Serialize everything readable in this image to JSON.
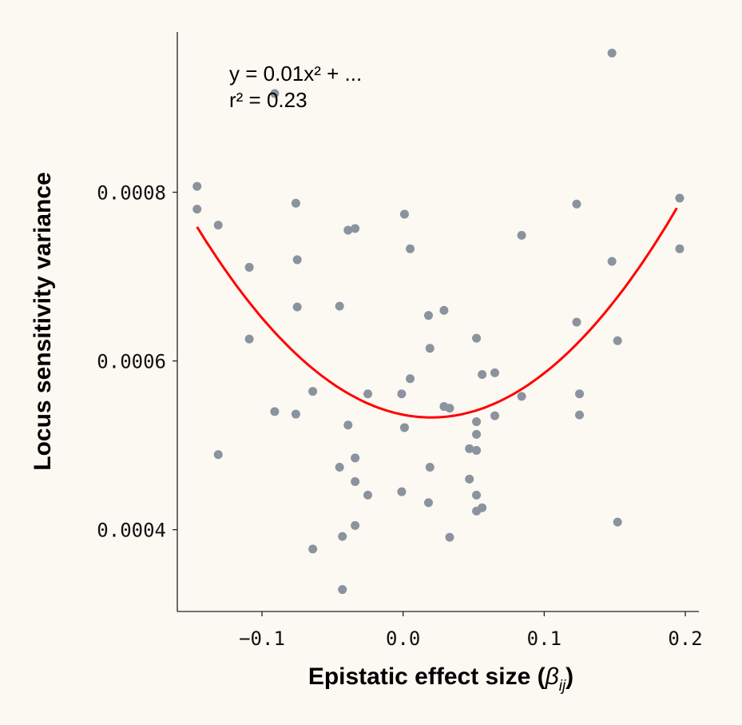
{
  "chart_data": {
    "type": "scatter",
    "title": "",
    "xlabel": "Epistatic effect size (",
    "xlabel_symbol": "β",
    "xlabel_subscript": "ij",
    "xlabel_close": ")",
    "ylabel": "Locus sensitivity variance",
    "xlim": [
      -0.16,
      0.2096
    ],
    "ylim": [
      0.000303,
      0.00099
    ],
    "xticks": [
      -0.1,
      0.0,
      0.1,
      0.2
    ],
    "xtick_labels": [
      "−0.1",
      "0.0",
      "0.1",
      "0.2"
    ],
    "yticks": [
      0.0004,
      0.0006,
      0.0008
    ],
    "ytick_labels": [
      "0.0004",
      "0.0006",
      "0.0008"
    ],
    "grid": false,
    "annotation": [
      "y = 0.01x² + ...",
      "r² = 0.23"
    ],
    "point_color": "#8a939e",
    "fit_color": "#ff0000",
    "points": [
      [
        -0.146,
        0.000807
      ],
      [
        -0.146,
        0.00078
      ],
      [
        -0.131,
        0.000761
      ],
      [
        -0.109,
        0.000711
      ],
      [
        -0.109,
        0.000626
      ],
      [
        -0.131,
        0.000489
      ],
      [
        -0.091,
        0.000917
      ],
      [
        -0.091,
        0.00054
      ],
      [
        -0.076,
        0.000787
      ],
      [
        -0.075,
        0.00072
      ],
      [
        -0.075,
        0.000664
      ],
      [
        -0.076,
        0.000537
      ],
      [
        -0.064,
        0.000564
      ],
      [
        -0.064,
        0.000377
      ],
      [
        -0.045,
        0.000665
      ],
      [
        -0.045,
        0.000474
      ],
      [
        -0.043,
        0.000392
      ],
      [
        -0.043,
        0.000329
      ],
      [
        -0.039,
        0.000755
      ],
      [
        -0.034,
        0.000757
      ],
      [
        -0.039,
        0.000524
      ],
      [
        -0.034,
        0.000485
      ],
      [
        -0.034,
        0.000457
      ],
      [
        -0.034,
        0.000405
      ],
      [
        -0.025,
        0.000561
      ],
      [
        -0.025,
        0.000441
      ],
      [
        0.001,
        0.000774
      ],
      [
        0.005,
        0.000733
      ],
      [
        -0.001,
        0.000561
      ],
      [
        0.001,
        0.000521
      ],
      [
        -0.001,
        0.000445
      ],
      [
        0.018,
        0.000654
      ],
      [
        0.019,
        0.000615
      ],
      [
        0.029,
        0.00066
      ],
      [
        0.005,
        0.000579
      ],
      [
        0.029,
        0.000546
      ],
      [
        0.033,
        0.000544
      ],
      [
        0.019,
        0.000474
      ],
      [
        0.018,
        0.000432
      ],
      [
        0.033,
        0.000391
      ],
      [
        0.052,
        0.000627
      ],
      [
        0.056,
        0.000584
      ],
      [
        0.065,
        0.000586
      ],
      [
        0.065,
        0.000535
      ],
      [
        0.052,
        0.000528
      ],
      [
        0.052,
        0.000513
      ],
      [
        0.047,
        0.000496
      ],
      [
        0.052,
        0.000494
      ],
      [
        0.047,
        0.00046
      ],
      [
        0.052,
        0.000441
      ],
      [
        0.052,
        0.000422
      ],
      [
        0.056,
        0.000426
      ],
      [
        0.084,
        0.000749
      ],
      [
        0.084,
        0.000558
      ],
      [
        0.123,
        0.000786
      ],
      [
        0.123,
        0.000646
      ],
      [
        0.125,
        0.000561
      ],
      [
        0.125,
        0.000536
      ],
      [
        0.148,
        0.000965
      ],
      [
        0.148,
        0.000718
      ],
      [
        0.152,
        0.000624
      ],
      [
        0.152,
        0.000409
      ],
      [
        0.196,
        0.000793
      ],
      [
        0.196,
        0.000733
      ]
    ],
    "fit": {
      "vertex_x": 0.02,
      "vertex_y": 0.000533,
      "a": 0.0082,
      "x_range": [
        -0.146,
        0.194
      ]
    }
  }
}
